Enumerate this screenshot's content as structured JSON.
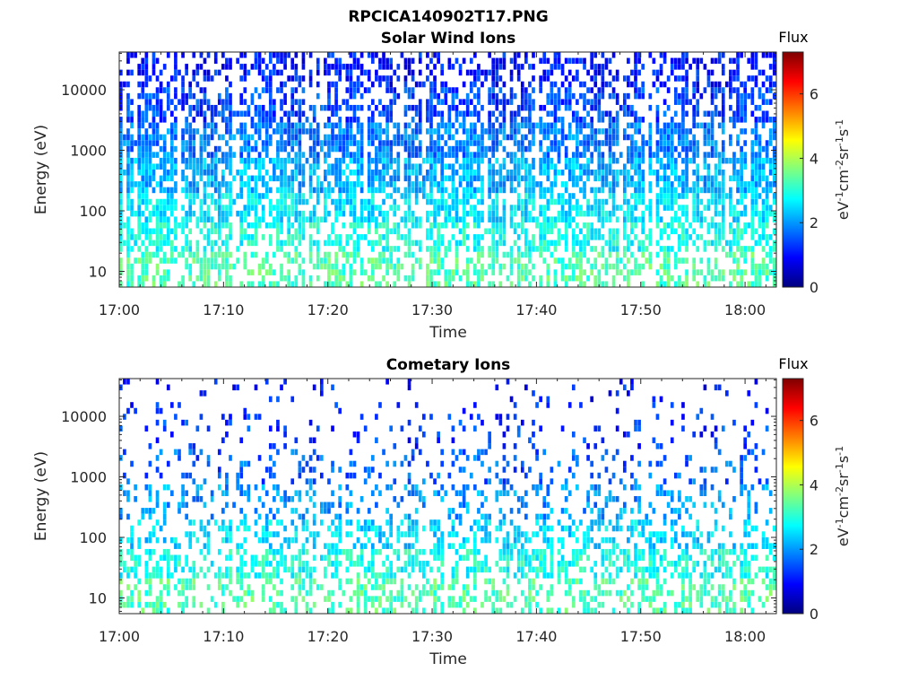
{
  "figure_title": "RPCICA140902T17.PNG",
  "colormap": [
    "#00007f",
    "#0000ff",
    "#007fff",
    "#00ffff",
    "#7fff7f",
    "#ffff00",
    "#ff7f00",
    "#ff0000",
    "#7f0000"
  ],
  "chart_data": [
    {
      "type": "heatmap",
      "title": "Solar Wind Ions",
      "xlabel": "Time",
      "ylabel": "Energy (eV)",
      "x_ticks": [
        "17:00",
        "17:10",
        "17:20",
        "17:30",
        "17:40",
        "17:50",
        "18:00"
      ],
      "xlim_minutes_after_1700": [
        0,
        63
      ],
      "y_scale": "log",
      "y_ticks": [
        {
          "value": 10,
          "label": "10"
        },
        {
          "value": 100,
          "label": "100"
        },
        {
          "value": 1000,
          "label": "1000"
        },
        {
          "value": 10000,
          "label": "10000"
        }
      ],
      "ylim_eV": [
        5.5,
        42000
      ],
      "colorbar": {
        "title": "Flux",
        "label": "eV-1cm-2sr-1s-1",
        "label_parts": {
          "base1": "eV",
          "exp1": "-1",
          "base2": "cm",
          "exp2": "-2",
          "base3": "sr",
          "exp3": "-1",
          "base4": "s",
          "exp4": "-1"
        },
        "clim": [
          0,
          7.3
        ],
        "ticks": [
          "0",
          "2",
          "4",
          "6"
        ]
      },
      "flux_bands": [
        {
          "energy_eV": 10,
          "typical_flux": 3.3,
          "coverage": 0.55
        },
        {
          "energy_eV": 40,
          "typical_flux": 2.9,
          "coverage": 0.65
        },
        {
          "energy_eV": 120,
          "typical_flux": 2.6,
          "coverage": 0.7
        },
        {
          "energy_eV": 400,
          "typical_flux": 2.2,
          "coverage": 0.75
        },
        {
          "energy_eV": 1500,
          "typical_flux": 1.8,
          "coverage": 0.7
        },
        {
          "energy_eV": 6000,
          "typical_flux": 1.4,
          "coverage": 0.55
        },
        {
          "energy_eV": 25000,
          "typical_flux": 1.1,
          "coverage": 0.45
        }
      ]
    },
    {
      "type": "heatmap",
      "title": "Cometary Ions",
      "xlabel": "Time",
      "ylabel": "Energy (eV)",
      "x_ticks": [
        "17:00",
        "17:10",
        "17:20",
        "17:30",
        "17:40",
        "17:50",
        "18:00"
      ],
      "xlim_minutes_after_1700": [
        0,
        63
      ],
      "y_scale": "log",
      "y_ticks": [
        {
          "value": 10,
          "label": "10"
        },
        {
          "value": 100,
          "label": "100"
        },
        {
          "value": 1000,
          "label": "1000"
        },
        {
          "value": 10000,
          "label": "10000"
        }
      ],
      "ylim_eV": [
        5.5,
        42000
      ],
      "colorbar": {
        "title": "Flux",
        "label": "eV-1cm-2sr-1s-1",
        "label_parts": {
          "base1": "eV",
          "exp1": "-1",
          "base2": "cm",
          "exp2": "-2",
          "base3": "sr",
          "exp3": "-1",
          "base4": "s",
          "exp4": "-1"
        },
        "clim": [
          0,
          7.3
        ],
        "ticks": [
          "0",
          "2",
          "4",
          "6"
        ]
      },
      "flux_bands": [
        {
          "energy_eV": 10,
          "typical_flux": 3.3,
          "coverage": 0.45
        },
        {
          "energy_eV": 40,
          "typical_flux": 2.9,
          "coverage": 0.55
        },
        {
          "energy_eV": 120,
          "typical_flux": 2.5,
          "coverage": 0.45
        },
        {
          "energy_eV": 400,
          "typical_flux": 2.0,
          "coverage": 0.3
        },
        {
          "energy_eV": 1500,
          "typical_flux": 1.6,
          "coverage": 0.2
        },
        {
          "energy_eV": 6000,
          "typical_flux": 1.3,
          "coverage": 0.12
        },
        {
          "energy_eV": 25000,
          "typical_flux": 1.1,
          "coverage": 0.07
        }
      ]
    }
  ]
}
